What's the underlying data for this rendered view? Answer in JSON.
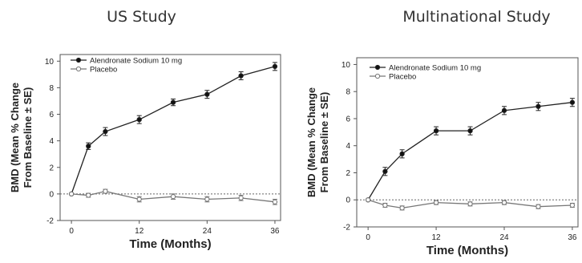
{
  "chart_data": [
    {
      "type": "line",
      "title": "US Study",
      "xlabel": "Time (Months)",
      "ylabel_line1": "BMD (Mean % Change",
      "ylabel_line2": "From Baseline ± SE)",
      "xlim": [
        -2,
        37
      ],
      "ylim": [
        -2,
        10.5
      ],
      "xticks": [
        0,
        12,
        24,
        36
      ],
      "yticks": [
        -2,
        0,
        2,
        4,
        6,
        8,
        10
      ],
      "reference_line": 0,
      "legend_position": "top-left",
      "series": [
        {
          "name": "Alendronate Sodium 10 mg",
          "marker": "filled-circle",
          "x": [
            0,
            3,
            6,
            12,
            18,
            24,
            30,
            36
          ],
          "y": [
            0,
            3.6,
            4.7,
            5.6,
            6.9,
            7.5,
            8.9,
            9.6
          ],
          "se": [
            0,
            0.25,
            0.3,
            0.3,
            0.25,
            0.3,
            0.3,
            0.3
          ]
        },
        {
          "name": "Placebo",
          "marker": "open-circle",
          "x": [
            0,
            3,
            6,
            12,
            18,
            24,
            30,
            36
          ],
          "y": [
            0,
            -0.1,
            0.2,
            -0.4,
            -0.2,
            -0.4,
            -0.3,
            -0.6
          ],
          "se": [
            0,
            0.15,
            0.15,
            0.2,
            0.2,
            0.2,
            0.2,
            0.2
          ]
        }
      ]
    },
    {
      "type": "line",
      "title": "Multinational Study",
      "xlabel": "Time (Months)",
      "ylabel_line1": "BMD (Mean % Change",
      "ylabel_line2": "From Baseline ± SE)",
      "xlim": [
        -2,
        37
      ],
      "ylim": [
        -2,
        10.5
      ],
      "xticks": [
        0,
        12,
        24,
        36
      ],
      "yticks": [
        -2,
        0,
        2,
        4,
        6,
        8,
        10
      ],
      "reference_line": 0,
      "legend_position": "top-left",
      "series": [
        {
          "name": "Alendronate Sodium 10 mg",
          "marker": "filled-circle",
          "x": [
            0,
            3,
            6,
            12,
            18,
            24,
            30,
            36
          ],
          "y": [
            0,
            2.1,
            3.4,
            5.1,
            5.1,
            6.6,
            6.9,
            7.2
          ],
          "se": [
            0,
            0.3,
            0.3,
            0.3,
            0.3,
            0.3,
            0.3,
            0.3
          ]
        },
        {
          "name": "Placebo",
          "marker": "open-circle",
          "x": [
            0,
            3,
            6,
            12,
            18,
            24,
            30,
            36
          ],
          "y": [
            0,
            -0.4,
            -0.6,
            -0.2,
            -0.3,
            -0.2,
            -0.5,
            -0.4
          ],
          "se": [
            0,
            0.15,
            0.15,
            0.15,
            0.15,
            0.15,
            0.15,
            0.15
          ]
        }
      ]
    }
  ]
}
